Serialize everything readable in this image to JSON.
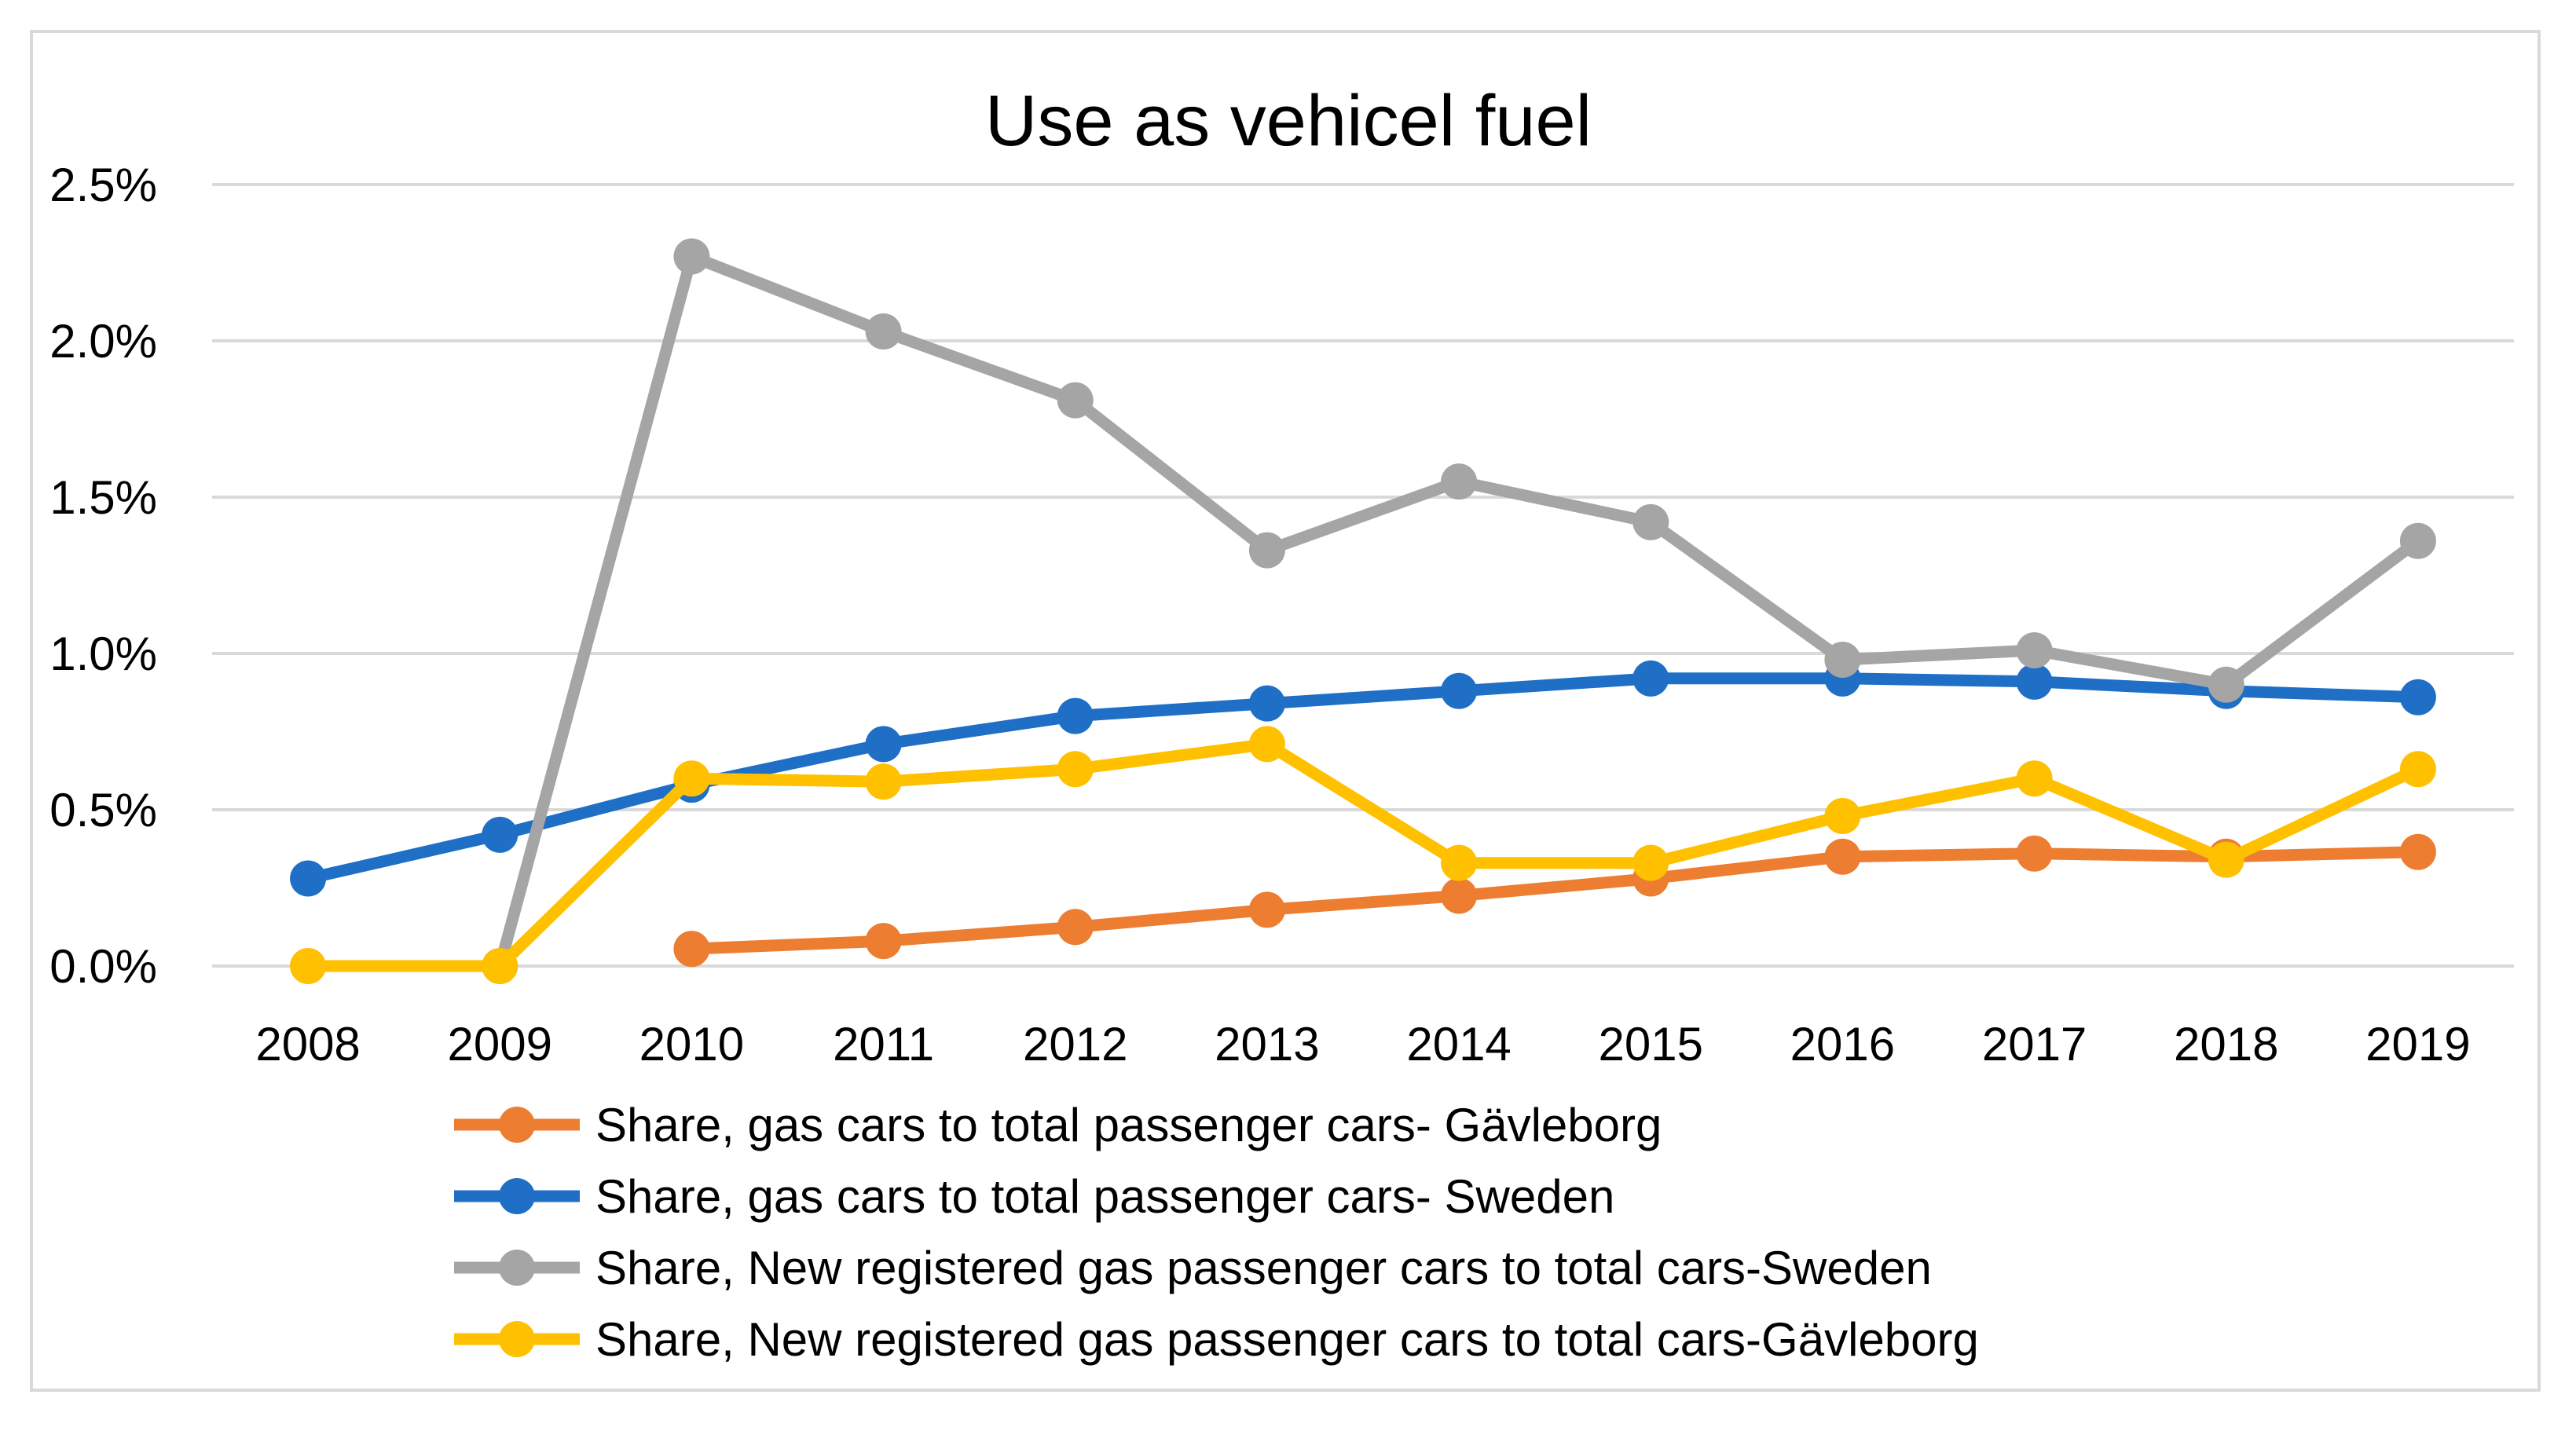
{
  "chart_data": {
    "type": "line",
    "title": "Use as vehicel fuel",
    "xlabel": "",
    "ylabel": "",
    "categories": [
      "2008",
      "2009",
      "2010",
      "2011",
      "2012",
      "2013",
      "2014",
      "2015",
      "2016",
      "2017",
      "2018",
      "2019"
    ],
    "y_ticks": [
      "0.0%",
      "0.5%",
      "1.0%",
      "1.5%",
      "2.0%",
      "2.5%"
    ],
    "ylim": [
      0,
      0.025
    ],
    "grid": true,
    "legend_position": "bottom",
    "series": [
      {
        "name": "Share, gas cars to total passenger cars- Gävleborg",
        "color": "#ed7d31",
        "values": [
          null,
          null,
          0.00055,
          0.0008,
          0.00125,
          0.0018,
          0.00225,
          0.0028,
          0.0035,
          0.0036,
          0.0035,
          0.00365
        ]
      },
      {
        "name": "Share, gas cars to total passenger cars- Sweden",
        "color": "#1f6fc6",
        "values": [
          0.0028,
          0.0042,
          0.0058,
          0.0071,
          0.008,
          0.0084,
          0.0088,
          0.0092,
          0.0092,
          0.0091,
          0.0088,
          0.0086
        ]
      },
      {
        "name": "Share, New registered gas passenger cars to total cars-Sweden",
        "color": "#a5a5a5",
        "values": [
          null,
          0.0,
          0.0227,
          0.0203,
          0.0181,
          0.0133,
          0.0155,
          0.0142,
          0.0098,
          0.0101,
          0.009,
          0.0136
        ]
      },
      {
        "name": "Share, New registered gas passenger cars to total cars-Gävleborg",
        "color": "#ffc000",
        "values": [
          0.0,
          0.0,
          0.006,
          0.0059,
          0.0063,
          0.0071,
          0.0033,
          0.0033,
          0.0048,
          0.006,
          0.0034,
          0.0063
        ]
      }
    ]
  },
  "frame_color": "#d9d9d9",
  "grid_color": "#d9d9d9"
}
